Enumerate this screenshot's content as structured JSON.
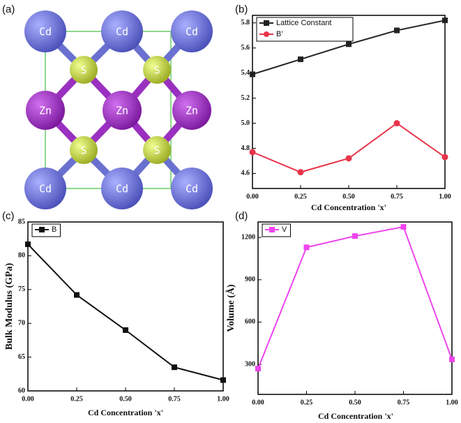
{
  "structure": {
    "panel_label": "(a)",
    "atoms": [
      {
        "label": "Cd"
      },
      {
        "label": "Cd"
      },
      {
        "label": "Cd"
      },
      {
        "label": "Cd"
      },
      {
        "label": "Cd"
      },
      {
        "label": "Cd"
      },
      {
        "label": "Zn"
      },
      {
        "label": "Zn"
      },
      {
        "label": "Zn"
      },
      {
        "label": "S"
      },
      {
        "label": "S"
      },
      {
        "label": "S"
      },
      {
        "label": "S"
      }
    ]
  },
  "chart_data": [
    {
      "type": "line",
      "panel_label": "(b)",
      "xlabel": "Cd Concentration 'x'",
      "x": [
        0,
        0.25,
        0.5,
        0.75,
        1
      ],
      "xlim": [
        0,
        1
      ],
      "xticks": [
        {
          "value": 0,
          "label": "0.00"
        },
        {
          "value": 0.25,
          "label": "0.25"
        },
        {
          "value": 0.5,
          "label": "0.50"
        },
        {
          "value": 0.75,
          "label": "0.75"
        },
        {
          "value": 1,
          "label": "1.00"
        }
      ],
      "ylim": [
        4.48,
        5.86
      ],
      "yticks": [
        4.6,
        4.8,
        {
          "value": 5,
          "label": "5.0"
        },
        5.2,
        5.4,
        5.6,
        5.8
      ],
      "legend": "upper left",
      "series": [
        {
          "name": "Lattice Constant",
          "color": "#222222",
          "marker": "square",
          "values": [
            5.39,
            5.51,
            5.63,
            5.74,
            5.82
          ]
        },
        {
          "name": "B'",
          "color": "#e8344a",
          "marker": "circle",
          "values": [
            4.77,
            4.61,
            4.72,
            5.0,
            4.73
          ]
        }
      ]
    },
    {
      "type": "line",
      "panel_label": "(c)",
      "xlabel": "Cd Concentration 'x'",
      "ylabel": "Bulk Modulus (GPa)",
      "x": [
        0,
        0.25,
        0.5,
        0.75,
        1
      ],
      "xlim": [
        0,
        1
      ],
      "xticks": [
        {
          "value": 0,
          "label": "0.00"
        },
        {
          "value": 0.25,
          "label": "0.25"
        },
        {
          "value": 0.5,
          "label": "0.50"
        },
        {
          "value": 0.75,
          "label": "0.75"
        },
        {
          "value": 1,
          "label": "1.00"
        }
      ],
      "ylim": [
        60,
        85
      ],
      "yticks": [
        60,
        65,
        70,
        75,
        80,
        85
      ],
      "legend": "upper left",
      "series": [
        {
          "name": "B",
          "color": "#111111",
          "marker": "square",
          "values": [
            81.7,
            74.2,
            69.0,
            63.5,
            61.6
          ]
        }
      ]
    },
    {
      "type": "line",
      "panel_label": "(d)",
      "xlabel": "Cd Concentration 'x'",
      "ylabel": "Volume (Å)",
      "x": [
        0,
        0.25,
        0.5,
        0.75,
        1
      ],
      "xlim": [
        0,
        1
      ],
      "xticks": [
        {
          "value": 0,
          "label": "0.00"
        },
        {
          "value": 0.25,
          "label": "0.25"
        },
        {
          "value": 0.5,
          "label": "0.50"
        },
        {
          "value": 0.75,
          "label": "0.75"
        },
        {
          "value": 1,
          "label": "1.00"
        }
      ],
      "ylim": [
        87,
        1310
      ],
      "yticks": [
        300,
        600,
        900,
        1200
      ],
      "legend": "upper left",
      "series": [
        {
          "name": "V",
          "color": "#ee44ee",
          "marker": "square",
          "values": [
            270,
            1130,
            1210,
            1275,
            335
          ]
        }
      ]
    }
  ]
}
